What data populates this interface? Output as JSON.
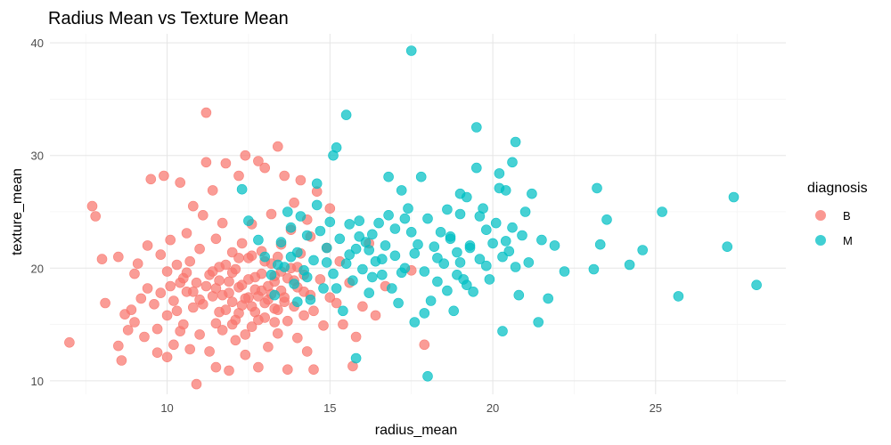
{
  "chart_data": {
    "type": "scatter",
    "title": "Radius Mean vs Texture Mean",
    "xlabel": "radius_mean",
    "ylabel": "texture_mean",
    "xlim": [
      6.4,
      29.0
    ],
    "ylim": [
      8.8,
      40.8
    ],
    "x_ticks": [
      10,
      15,
      20,
      25
    ],
    "y_ticks": [
      10,
      20,
      30,
      40
    ],
    "x_tick_labels": [
      "10",
      "15",
      "20",
      "25"
    ],
    "y_tick_labels": [
      "10",
      "20",
      "30",
      "40"
    ],
    "grid": true,
    "legend": {
      "title": "diagnosis",
      "placement": "right"
    },
    "series": [
      {
        "name": "B",
        "color": "#F8766D",
        "points": [
          [
            7.0,
            13.4
          ],
          [
            7.7,
            25.5
          ],
          [
            7.8,
            24.6
          ],
          [
            8.0,
            20.8
          ],
          [
            8.1,
            16.9
          ],
          [
            8.5,
            21.0
          ],
          [
            8.5,
            13.1
          ],
          [
            8.6,
            11.8
          ],
          [
            8.7,
            15.9
          ],
          [
            8.8,
            14.5
          ],
          [
            8.9,
            16.3
          ],
          [
            9.0,
            19.5
          ],
          [
            9.0,
            15.2
          ],
          [
            9.1,
            20.4
          ],
          [
            9.2,
            17.3
          ],
          [
            9.3,
            13.9
          ],
          [
            9.4,
            22.0
          ],
          [
            9.4,
            18.2
          ],
          [
            9.5,
            27.9
          ],
          [
            9.6,
            16.8
          ],
          [
            9.7,
            12.5
          ],
          [
            9.7,
            14.6
          ],
          [
            9.8,
            17.8
          ],
          [
            9.8,
            21.2
          ],
          [
            9.9,
            28.2
          ],
          [
            10.0,
            19.7
          ],
          [
            10.0,
            15.8
          ],
          [
            10.0,
            12.1
          ],
          [
            10.1,
            18.4
          ],
          [
            10.1,
            22.5
          ],
          [
            10.2,
            17.1
          ],
          [
            10.2,
            13.2
          ],
          [
            10.3,
            20.3
          ],
          [
            10.3,
            16.2
          ],
          [
            10.4,
            14.4
          ],
          [
            10.4,
            27.6
          ],
          [
            10.5,
            19.1
          ],
          [
            10.5,
            15.0
          ],
          [
            10.6,
            23.1
          ],
          [
            10.6,
            17.9
          ],
          [
            10.7,
            12.8
          ],
          [
            10.7,
            20.6
          ],
          [
            10.8,
            16.5
          ],
          [
            10.8,
            25.5
          ],
          [
            10.9,
            18.7
          ],
          [
            10.9,
            9.7
          ],
          [
            11.0,
            14.1
          ],
          [
            11.0,
            21.7
          ],
          [
            11.1,
            24.7
          ],
          [
            11.1,
            16.8
          ],
          [
            11.2,
            33.8
          ],
          [
            11.2,
            29.4
          ],
          [
            11.3,
            19.4
          ],
          [
            11.3,
            12.6
          ],
          [
            11.4,
            17.5
          ],
          [
            11.4,
            26.9
          ],
          [
            11.5,
            15.1
          ],
          [
            11.5,
            22.6
          ],
          [
            11.5,
            11.2
          ],
          [
            11.6,
            18.9
          ],
          [
            11.6,
            20.1
          ],
          [
            11.7,
            14.5
          ],
          [
            11.7,
            24.0
          ],
          [
            11.8,
            16.3
          ],
          [
            11.8,
            29.3
          ],
          [
            11.9,
            17.8
          ],
          [
            11.9,
            10.9
          ],
          [
            12.0,
            19.6
          ],
          [
            12.0,
            21.4
          ],
          [
            12.1,
            13.6
          ],
          [
            12.1,
            15.4
          ],
          [
            12.2,
            28.2
          ],
          [
            12.2,
            18.3
          ],
          [
            12.3,
            22.2
          ],
          [
            12.3,
            16.7
          ],
          [
            12.4,
            30.0
          ],
          [
            12.4,
            12.3
          ],
          [
            12.5,
            20.9
          ],
          [
            12.5,
            17.4
          ],
          [
            12.6,
            14.8
          ],
          [
            12.6,
            23.9
          ],
          [
            12.7,
            19.2
          ],
          [
            12.7,
            16.1
          ],
          [
            12.8,
            29.5
          ],
          [
            12.8,
            11.2
          ],
          [
            12.9,
            18.0
          ],
          [
            12.9,
            21.5
          ],
          [
            13.0,
            15.6
          ],
          [
            13.0,
            28.9
          ],
          [
            13.1,
            17.2
          ],
          [
            13.1,
            13.0
          ],
          [
            13.2,
            20.4
          ],
          [
            13.2,
            24.8
          ],
          [
            13.3,
            16.4
          ],
          [
            13.3,
            18.8
          ],
          [
            13.4,
            30.8
          ],
          [
            13.4,
            14.2
          ],
          [
            13.5,
            22.1
          ],
          [
            13.5,
            19.7
          ],
          [
            13.6,
            17.0
          ],
          [
            13.6,
            28.2
          ],
          [
            13.7,
            15.3
          ],
          [
            13.7,
            11.0
          ],
          [
            13.8,
            20.0
          ],
          [
            13.8,
            23.4
          ],
          [
            13.9,
            16.6
          ],
          [
            13.9,
            25.8
          ],
          [
            14.0,
            18.3
          ],
          [
            14.0,
            13.8
          ],
          [
            14.1,
            27.8
          ],
          [
            14.1,
            21.3
          ],
          [
            14.2,
            15.8
          ],
          [
            14.2,
            19.4
          ],
          [
            14.3,
            24.3
          ],
          [
            14.3,
            12.6
          ],
          [
            14.4,
            17.6
          ],
          [
            14.4,
            22.8
          ],
          [
            14.5,
            16.2
          ],
          [
            14.5,
            11.0
          ],
          [
            14.6,
            26.8
          ],
          [
            14.7,
            19.0
          ],
          [
            14.8,
            14.9
          ],
          [
            14.9,
            21.8
          ],
          [
            15.0,
            17.4
          ],
          [
            15.0,
            25.3
          ],
          [
            15.2,
            16.9
          ],
          [
            15.3,
            20.6
          ],
          [
            15.4,
            15.0
          ],
          [
            15.6,
            18.7
          ],
          [
            15.7,
            11.3
          ],
          [
            15.8,
            13.9
          ],
          [
            16.0,
            16.6
          ],
          [
            16.2,
            22.2
          ],
          [
            16.4,
            15.8
          ],
          [
            16.7,
            18.4
          ],
          [
            17.5,
            19.8
          ],
          [
            17.9,
            13.2
          ],
          [
            11.5,
            18.2
          ],
          [
            11.7,
            17.6
          ],
          [
            11.9,
            18.8
          ],
          [
            12.0,
            17.0
          ],
          [
            12.1,
            19.9
          ],
          [
            12.2,
            16.0
          ],
          [
            12.3,
            18.5
          ],
          [
            12.4,
            17.3
          ],
          [
            12.5,
            19.0
          ],
          [
            12.6,
            16.6
          ],
          [
            12.7,
            18.1
          ],
          [
            12.8,
            17.5
          ],
          [
            12.9,
            19.5
          ],
          [
            13.0,
            16.9
          ],
          [
            13.1,
            18.4
          ],
          [
            13.2,
            17.7
          ],
          [
            13.3,
            19.3
          ],
          [
            13.4,
            16.3
          ],
          [
            13.5,
            18.0
          ],
          [
            13.6,
            17.4
          ],
          [
            12.2,
            20.9
          ],
          [
            12.6,
            21.1
          ],
          [
            13.0,
            20.6
          ],
          [
            13.4,
            21.0
          ],
          [
            11.8,
            20.3
          ],
          [
            11.4,
            19.7
          ],
          [
            12.8,
            15.4
          ],
          [
            13.3,
            15.2
          ],
          [
            12.0,
            15.0
          ],
          [
            11.6,
            16.1
          ],
          [
            10.8,
            17.9
          ],
          [
            10.6,
            19.6
          ],
          [
            10.4,
            18.7
          ],
          [
            11.2,
            18.4
          ],
          [
            11.0,
            17.2
          ],
          [
            12.4,
            14.1
          ],
          [
            13.7,
            19.1
          ],
          [
            14.0,
            20.1
          ],
          [
            14.2,
            17.9
          ],
          [
            13.9,
            18.9
          ]
        ]
      },
      {
        "name": "M",
        "color": "#00BFC4",
        "points": [
          [
            12.3,
            27.0
          ],
          [
            12.5,
            24.2
          ],
          [
            12.8,
            22.5
          ],
          [
            13.0,
            21.0
          ],
          [
            13.2,
            19.4
          ],
          [
            13.3,
            17.6
          ],
          [
            13.5,
            22.3
          ],
          [
            13.6,
            20.1
          ],
          [
            13.7,
            25.0
          ],
          [
            13.8,
            23.6
          ],
          [
            13.9,
            18.6
          ],
          [
            14.0,
            21.4
          ],
          [
            14.1,
            24.6
          ],
          [
            14.2,
            19.8
          ],
          [
            14.3,
            22.9
          ],
          [
            14.4,
            17.2
          ],
          [
            14.5,
            20.7
          ],
          [
            14.6,
            25.6
          ],
          [
            14.6,
            27.5
          ],
          [
            14.7,
            23.3
          ],
          [
            14.8,
            18.2
          ],
          [
            14.9,
            21.8
          ],
          [
            15.0,
            24.1
          ],
          [
            15.1,
            19.5
          ],
          [
            15.1,
            30.0
          ],
          [
            15.2,
            30.7
          ],
          [
            15.3,
            22.6
          ],
          [
            15.4,
            16.2
          ],
          [
            15.5,
            33.6
          ],
          [
            15.5,
            20.4
          ],
          [
            15.6,
            23.9
          ],
          [
            15.7,
            18.9
          ],
          [
            15.8,
            21.7
          ],
          [
            15.8,
            12.0
          ],
          [
            15.9,
            24.2
          ],
          [
            16.0,
            19.9
          ],
          [
            16.1,
            22.3
          ],
          [
            16.2,
            17.8
          ],
          [
            16.3,
            23.0
          ],
          [
            16.4,
            20.6
          ],
          [
            16.5,
            24.0
          ],
          [
            16.6,
            19.4
          ],
          [
            16.7,
            22.0
          ],
          [
            16.8,
            28.1
          ],
          [
            16.9,
            18.2
          ],
          [
            17.0,
            21.1
          ],
          [
            17.0,
            23.5
          ],
          [
            17.1,
            16.9
          ],
          [
            17.2,
            26.9
          ],
          [
            17.3,
            24.4
          ],
          [
            17.3,
            20.0
          ],
          [
            17.4,
            25.3
          ],
          [
            17.5,
            39.3
          ],
          [
            17.6,
            15.2
          ],
          [
            17.7,
            22.1
          ],
          [
            17.8,
            28.1
          ],
          [
            17.9,
            19.7
          ],
          [
            18.0,
            24.4
          ],
          [
            18.0,
            10.4
          ],
          [
            18.1,
            17.1
          ],
          [
            18.2,
            21.9
          ],
          [
            18.3,
            18.8
          ],
          [
            18.4,
            23.2
          ],
          [
            18.5,
            20.4
          ],
          [
            18.6,
            25.2
          ],
          [
            18.7,
            22.6
          ],
          [
            18.8,
            16.2
          ],
          [
            18.9,
            21.4
          ],
          [
            19.0,
            24.8
          ],
          [
            19.1,
            19.0
          ],
          [
            19.2,
            26.3
          ],
          [
            19.3,
            22.0
          ],
          [
            19.4,
            17.9
          ],
          [
            19.5,
            32.5
          ],
          [
            19.5,
            28.9
          ],
          [
            19.6,
            20.8
          ],
          [
            19.7,
            25.3
          ],
          [
            19.8,
            23.4
          ],
          [
            19.9,
            19.0
          ],
          [
            20.0,
            22.2
          ],
          [
            20.1,
            24.0
          ],
          [
            20.2,
            28.4
          ],
          [
            20.3,
            14.4
          ],
          [
            20.4,
            26.9
          ],
          [
            20.5,
            21.5
          ],
          [
            20.6,
            23.6
          ],
          [
            20.6,
            29.4
          ],
          [
            20.7,
            31.2
          ],
          [
            20.8,
            17.6
          ],
          [
            20.9,
            22.9
          ],
          [
            21.0,
            25.0
          ],
          [
            21.1,
            20.5
          ],
          [
            21.2,
            26.6
          ],
          [
            21.4,
            15.2
          ],
          [
            21.5,
            22.5
          ],
          [
            21.7,
            17.3
          ],
          [
            21.9,
            22.0
          ],
          [
            22.2,
            19.7
          ],
          [
            23.1,
            19.9
          ],
          [
            23.2,
            27.1
          ],
          [
            23.3,
            22.1
          ],
          [
            23.5,
            24.3
          ],
          [
            24.2,
            20.3
          ],
          [
            24.6,
            21.6
          ],
          [
            25.2,
            25.0
          ],
          [
            25.7,
            17.5
          ],
          [
            27.2,
            21.9
          ],
          [
            27.4,
            26.3
          ],
          [
            28.1,
            18.5
          ],
          [
            17.2,
            19.6
          ],
          [
            17.6,
            21.3
          ],
          [
            18.3,
            20.9
          ],
          [
            18.9,
            19.4
          ],
          [
            19.3,
            21.8
          ],
          [
            19.8,
            20.2
          ],
          [
            20.3,
            21.0
          ],
          [
            16.6,
            20.8
          ],
          [
            16.2,
            21.6
          ],
          [
            15.9,
            22.8
          ],
          [
            19.2,
            18.5
          ],
          [
            18.6,
            18.0
          ],
          [
            17.9,
            16.0
          ],
          [
            20.7,
            20.1
          ],
          [
            20.4,
            22.4
          ],
          [
            19.6,
            24.6
          ],
          [
            18.7,
            22.8
          ],
          [
            17.5,
            23.2
          ],
          [
            16.8,
            24.7
          ],
          [
            19.0,
            20.5
          ],
          [
            14.9,
            20.5
          ],
          [
            15.2,
            18.2
          ],
          [
            14.3,
            19.2
          ],
          [
            14.0,
            17.0
          ],
          [
            13.8,
            21.0
          ],
          [
            13.4,
            20.3
          ],
          [
            15.6,
            21.2
          ],
          [
            16.3,
            19.2
          ],
          [
            20.2,
            27.1
          ],
          [
            19.0,
            26.6
          ]
        ]
      }
    ]
  }
}
